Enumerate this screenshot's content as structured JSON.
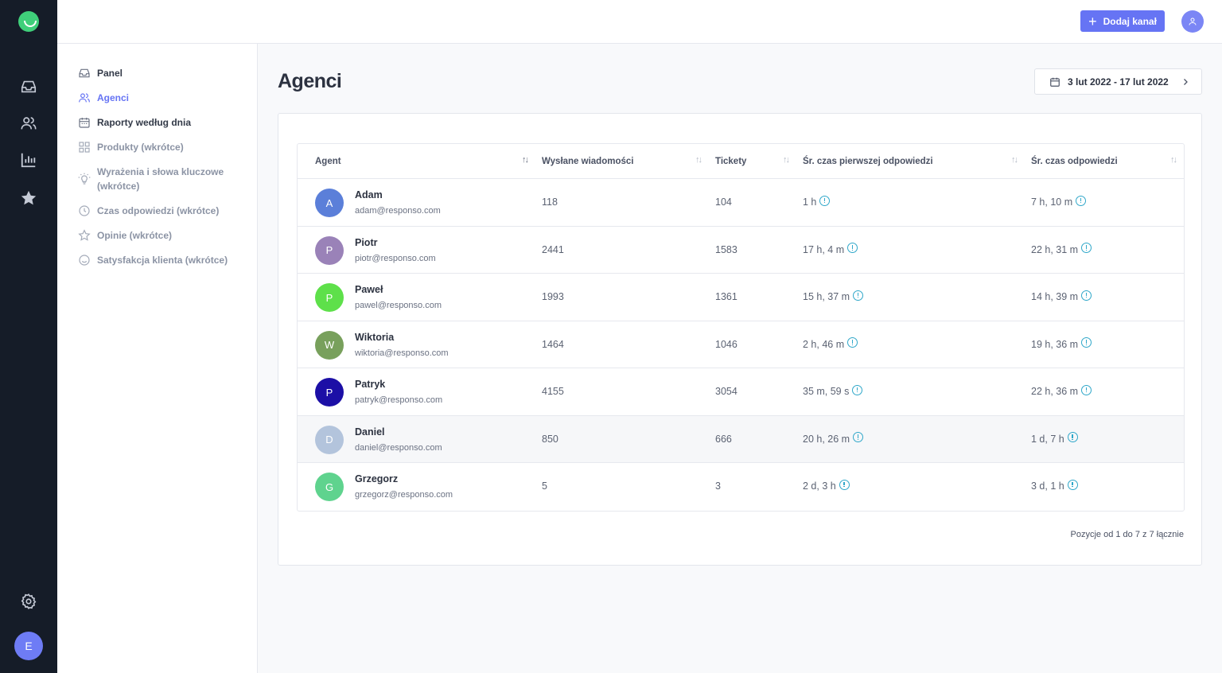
{
  "topbar": {
    "add_channel_label": "Dodaj kanał"
  },
  "rail": {
    "user_initial": "E"
  },
  "sidebar": {
    "items": [
      {
        "label": "Panel",
        "icon": "inbox-icon",
        "state": "normal"
      },
      {
        "label": "Agenci",
        "icon": "users-icon",
        "state": "active"
      },
      {
        "label": "Raporty według dnia",
        "icon": "calendar-icon",
        "state": "normal"
      },
      {
        "label": "Produkty (wkrótce)",
        "icon": "grid-icon",
        "state": "dim"
      },
      {
        "label": "Wyrażenia i słowa kluczowe",
        "label2": "(wkrótce)",
        "icon": "bulb-icon",
        "state": "dim"
      },
      {
        "label": "Czas odpowiedzi (wkrótce)",
        "icon": "clock-icon",
        "state": "dim"
      },
      {
        "label": "Opinie (wkrótce)",
        "icon": "star-icon",
        "state": "dim"
      },
      {
        "label": "Satysfakcja klienta (wkrótce)",
        "icon": "smile-icon",
        "state": "dim"
      }
    ]
  },
  "main": {
    "title": "Agenci",
    "date_range": "3 lut 2022 - 17 lut 2022",
    "table": {
      "columns": [
        "Agent",
        "Wysłane wiadomości",
        "Tickety",
        "Śr. czas pierwszej odpowiedzi",
        "Śr. czas odpowiedzi"
      ],
      "rows": [
        {
          "initial": "A",
          "color": "#5b7fd9",
          "name": "Adam",
          "email": "adam@responso.com",
          "sent": "118",
          "tickets": "104",
          "first": "1 h",
          "avg": "7 h, 10 m"
        },
        {
          "initial": "P",
          "color": "#9a82b8",
          "name": "Piotr",
          "email": "piotr@responso.com",
          "sent": "2441",
          "tickets": "1583",
          "first": "17 h, 4 m",
          "avg": "22 h, 31 m"
        },
        {
          "initial": "P",
          "color": "#5ee04a",
          "name": "Paweł",
          "email": "pawel@responso.com",
          "sent": "1993",
          "tickets": "1361",
          "first": "15 h, 37 m",
          "avg": "14 h, 39 m"
        },
        {
          "initial": "W",
          "color": "#78a05c",
          "name": "Wiktoria",
          "email": "wiktoria@responso.com",
          "sent": "1464",
          "tickets": "1046",
          "first": "2 h, 46 m",
          "avg": "19 h, 36 m"
        },
        {
          "initial": "P",
          "color": "#1c0fa6",
          "name": "Patryk",
          "email": "patryk@responso.com",
          "sent": "4155",
          "tickets": "3054",
          "first": "35 m, 59 s",
          "avg": "22 h, 36 m"
        },
        {
          "initial": "D",
          "color": "#b3c4dc",
          "name": "Daniel",
          "email": "daniel@responso.com",
          "sent": "850",
          "tickets": "666",
          "first": "20 h, 26 m",
          "avg": "1 d, 7 h"
        },
        {
          "initial": "G",
          "color": "#5fd38e",
          "name": "Grzegorz",
          "email": "grzegorz@responso.com",
          "sent": "5",
          "tickets": "3",
          "first": "2 d, 3 h",
          "avg": "3 d, 1 h"
        }
      ]
    },
    "pagination_text": "Pozycje od 1 do 7 z 7 łącznie"
  }
}
